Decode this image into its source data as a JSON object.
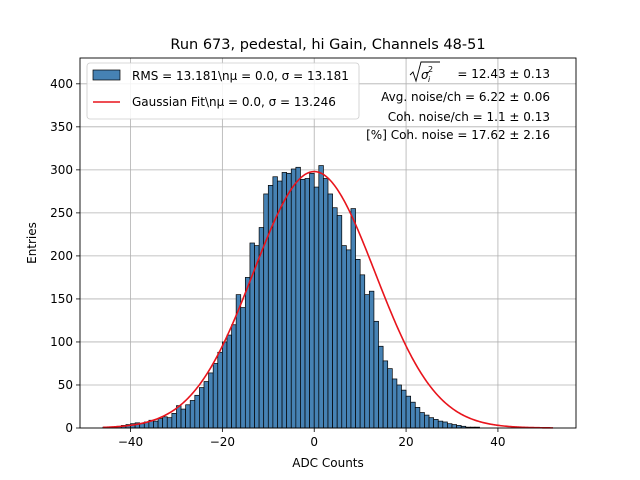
{
  "chart_data": {
    "type": "bar",
    "title": "Run 673, pedestal, hi Gain, Channels 48-51",
    "xlabel": "ADC Counts",
    "ylabel": "Entries",
    "xlim": [
      -51,
      57
    ],
    "ylim": [
      0,
      430
    ],
    "xticks": [
      -40,
      -20,
      0,
      20,
      40
    ],
    "yticks": [
      0,
      50,
      100,
      150,
      200,
      250,
      300,
      350,
      400
    ],
    "grid": true,
    "legend_position": "top-left",
    "bin_width": 1,
    "bins_start": -46,
    "histogram": [
      1,
      1,
      1,
      2,
      3,
      4,
      5,
      6,
      5,
      7,
      9,
      8,
      11,
      13,
      12,
      17,
      26,
      22,
      27,
      32,
      38,
      47,
      54,
      64,
      75,
      88,
      100,
      108,
      120,
      155,
      140,
      175,
      215,
      212,
      233,
      272,
      282,
      292,
      287,
      297,
      296,
      301,
      303,
      289,
      290,
      296,
      280,
      305,
      290,
      272,
      256,
      247,
      212,
      207,
      255,
      196,
      178,
      155,
      159,
      124,
      95,
      78,
      69,
      57,
      50,
      44,
      37,
      30,
      24,
      18,
      15,
      12,
      10,
      8,
      7,
      5,
      4,
      3,
      2,
      1,
      1,
      1,
      0,
      0,
      0,
      0,
      0,
      0,
      0,
      0,
      0,
      0,
      0,
      0,
      0,
      0,
      0
    ],
    "series": [
      {
        "name": "RMS = 13.181\\n$\\mu$ = 0.0, $\\sigma$ = 13.181",
        "legend_label": "RMS = 13.181\\nμ = 0.0, σ = 13.181",
        "kind": "histogram",
        "color": "#4682b4"
      },
      {
        "name": "Gaussian Fit\\n$\\mu$ = 0.0, $\\sigma$ = 13.246",
        "legend_label": "Gaussian Fit\\nμ = 0.0, σ = 13.246",
        "kind": "fit",
        "mu": 0.0,
        "sigma": 13.246,
        "amplitude": 298,
        "x_range": [
          -46,
          52
        ],
        "color": "#e8141c"
      }
    ],
    "annotations": [
      {
        "id": "sigma_sum",
        "text": "= 12.43 ± 0.13"
      },
      {
        "id": "avg_noise",
        "text": "Avg. noise/ch = 6.22 ± 0.06"
      },
      {
        "id": "coh_noise",
        "text": "Coh. noise/ch = 1.1 ± 0.13"
      },
      {
        "id": "pct_coh",
        "text": "[%] Coh. noise = 17.62 ± 2.16"
      }
    ]
  }
}
